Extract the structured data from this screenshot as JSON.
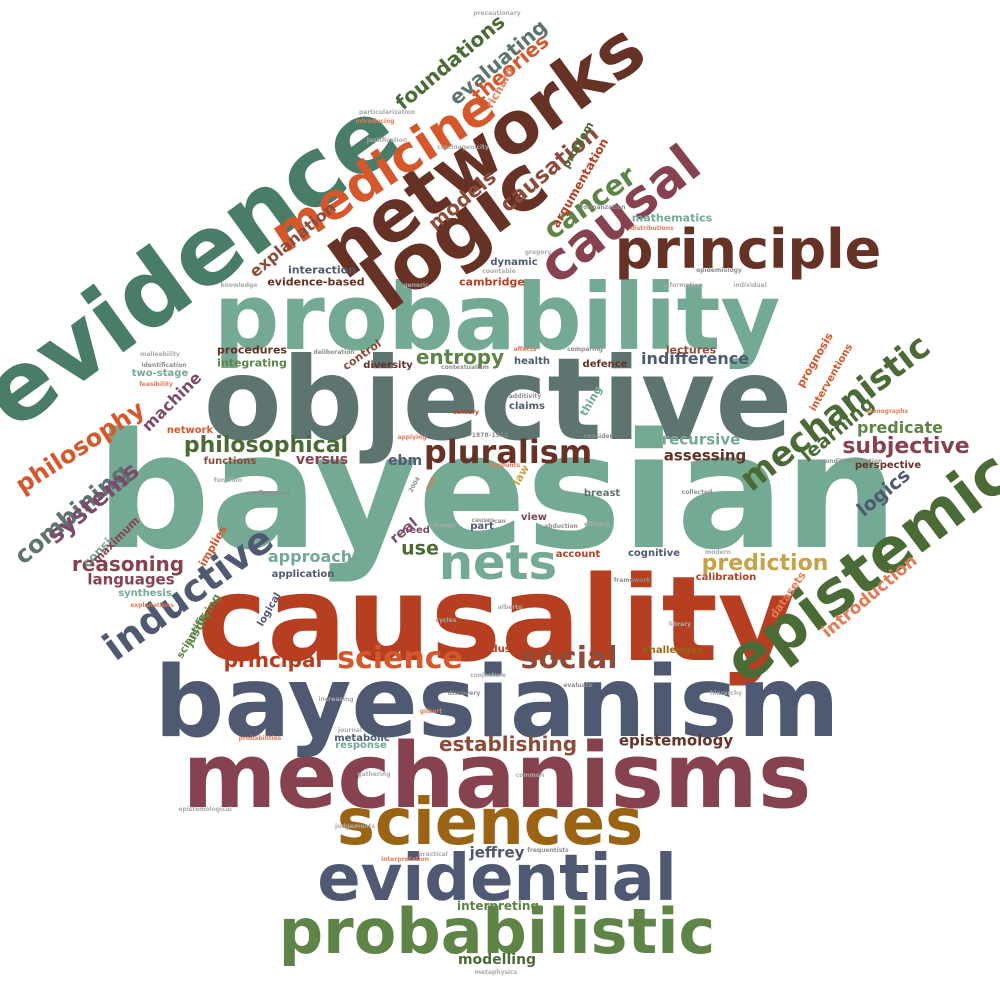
{
  "palette": {
    "teal": "#74a993",
    "slate": "#5d7470",
    "navy": "#4f5a72",
    "rust": "#b63f22",
    "plum": "#86434f",
    "gold": "#9a6414",
    "olive": "#5e8447",
    "green": "#4a7d67",
    "brown": "#653225",
    "orange": "#d5572c",
    "dkolive": "#4a6b35",
    "mauve": "#7b4b6c",
    "sand": "#c8a246",
    "sienna": "#8d4c3a",
    "coral": "#e27b56"
  },
  "words": [
    {
      "text": "bayesian",
      "color": "#74a993"
    },
    {
      "text": "objective",
      "color": "#5d7470"
    },
    {
      "text": "causality",
      "color": "#b63f22"
    },
    {
      "text": "bayesianism",
      "color": "#4f5a72"
    },
    {
      "text": "mechanisms",
      "color": "#86434f"
    },
    {
      "text": "probability",
      "color": "#74a993"
    },
    {
      "text": "evidence",
      "color": "#4a7d67"
    },
    {
      "text": "sciences",
      "color": "#9a6414"
    },
    {
      "text": "evidential",
      "color": "#4f5a72"
    },
    {
      "text": "probabilistic",
      "color": "#5e8447"
    },
    {
      "text": "networks",
      "color": "#653225"
    },
    {
      "text": "logic",
      "color": "#653225"
    },
    {
      "text": "epistemic",
      "color": "#4a6b35"
    },
    {
      "text": "principle",
      "color": "#653225"
    },
    {
      "text": "medicine",
      "color": "#d5572c"
    },
    {
      "text": "causal",
      "color": "#86434f"
    },
    {
      "text": "nets",
      "color": "#74a993"
    },
    {
      "text": "inductive",
      "color": "#4f5a72"
    },
    {
      "text": "mechanistic",
      "color": "#4a6b35"
    },
    {
      "text": "pluralism",
      "color": "#653225"
    },
    {
      "text": "science",
      "color": "#d5572c"
    },
    {
      "text": "social",
      "color": "#8d4c3a"
    },
    {
      "text": "philosophy",
      "color": "#d5572c"
    },
    {
      "text": "combining",
      "color": "#5d7470"
    },
    {
      "text": "systems",
      "color": "#7b4b6c"
    },
    {
      "text": "cancer",
      "color": "#5e8447"
    },
    {
      "text": "models",
      "color": "#8d4c3a"
    },
    {
      "text": "causation",
      "color": "#8d4c3a"
    },
    {
      "text": "evaluating",
      "color": "#5d7470"
    },
    {
      "text": "foundations",
      "color": "#4a6b35"
    },
    {
      "text": "theories",
      "color": "#d5572c"
    },
    {
      "text": "philosophical",
      "color": "#4a6b35"
    },
    {
      "text": "reasoning",
      "color": "#86434f"
    },
    {
      "text": "subjective",
      "color": "#86434f"
    },
    {
      "text": "prediction",
      "color": "#c8a246"
    },
    {
      "text": "entropy",
      "color": "#5e8447"
    },
    {
      "text": "establishing",
      "color": "#8d4c3a"
    },
    {
      "text": "principal",
      "color": "#b63f22"
    },
    {
      "text": "learning",
      "color": "#4a6b35"
    },
    {
      "text": "logics",
      "color": "#4f5a72"
    },
    {
      "text": "introduction",
      "color": "#e27b56"
    },
    {
      "text": "explanation",
      "color": "#8d4c3a"
    },
    {
      "text": "indifference",
      "color": "#4f5a72"
    },
    {
      "text": "recursive",
      "color": "#74a993"
    },
    {
      "text": "assessing",
      "color": "#653225"
    },
    {
      "text": "languages",
      "color": "#86434f"
    },
    {
      "text": "approach",
      "color": "#74a993"
    },
    {
      "text": "predicate",
      "color": "#5e8447"
    },
    {
      "text": "use",
      "color": "#4a6b35"
    },
    {
      "text": "epistemology",
      "color": "#653225"
    },
    {
      "text": "jeffrey",
      "color": "#4f5a72"
    },
    {
      "text": "interpreting",
      "color": "#5e8447"
    },
    {
      "text": "modelling",
      "color": "#4a6b35"
    },
    {
      "text": "machine",
      "color": "#7b4b6c"
    },
    {
      "text": "versus",
      "color": "#86434f"
    },
    {
      "text": "ebm",
      "color": "#4f5a72"
    },
    {
      "text": "real",
      "color": "#7b4b6c"
    },
    {
      "text": "mathematics",
      "color": "#74a993"
    },
    {
      "text": "cambridge",
      "color": "#b63f22"
    },
    {
      "text": "evidence-based",
      "color": "#653225"
    },
    {
      "text": "interaction",
      "color": "#4f5a72"
    },
    {
      "text": "procedures",
      "color": "#653225"
    },
    {
      "text": "integrating",
      "color": "#5e8447"
    },
    {
      "text": "functions",
      "color": "#8d4c3a"
    },
    {
      "text": "perspective",
      "color": "#653225"
    },
    {
      "text": "lectures",
      "color": "#8d4c3a"
    },
    {
      "text": "health",
      "color": "#4f5a72"
    },
    {
      "text": "defence",
      "color": "#653225"
    },
    {
      "text": "claims",
      "color": "#4f5a72"
    },
    {
      "text": "diversity",
      "color": "#653225"
    },
    {
      "text": "control",
      "color": "#8d4c3a"
    },
    {
      "text": "dynamic",
      "color": "#4f5a72"
    },
    {
      "text": "thing",
      "color": "#74a993"
    },
    {
      "text": "breast",
      "color": "#5d7470"
    },
    {
      "text": "account",
      "color": "#b63f22"
    },
    {
      "text": "cognitive",
      "color": "#4f5a72"
    },
    {
      "text": "calibration",
      "color": "#b63f22"
    },
    {
      "text": "datasets",
      "color": "#e27b56"
    },
    {
      "text": "challenges",
      "color": "#9a6414"
    },
    {
      "text": "response",
      "color": "#74a993"
    },
    {
      "text": "metabolic",
      "color": "#4f5a72"
    },
    {
      "text": "application",
      "color": "#4f5a72"
    },
    {
      "text": "synthesis",
      "color": "#74a993"
    },
    {
      "text": "two-stage",
      "color": "#74a993"
    },
    {
      "text": "network",
      "color": "#d5572c"
    },
    {
      "text": "implies",
      "color": "#d5572c"
    },
    {
      "text": "justifying",
      "color": "#5e8447"
    },
    {
      "text": "consistent",
      "color": "#74a993"
    },
    {
      "text": "maximum",
      "color": "#86434f"
    },
    {
      "text": "modus",
      "color": "#b63f22"
    },
    {
      "text": "part",
      "color": "#4f5a72"
    },
    {
      "text": "need",
      "color": "#7b4b6c"
    },
    {
      "text": "view",
      "color": "#86434f"
    },
    {
      "text": "richard",
      "color": "#e27b56"
    },
    {
      "text": "problem",
      "color": "#4a6b35"
    },
    {
      "text": "argumentation",
      "color": "#b63f22"
    },
    {
      "text": "prognosis",
      "color": "#d5572c"
    },
    {
      "text": "interventions",
      "color": "#d5572c"
    },
    {
      "text": "scientific",
      "color": "#5e8447"
    },
    {
      "text": "logical",
      "color": "#4f5a72"
    },
    {
      "text": "law",
      "color": "#c8a246"
    },
    {
      "text": "discovery",
      "color": "#8d8d8d"
    },
    {
      "text": "frequentists",
      "color": "#8d8d8d"
    },
    {
      "text": "metaphysics",
      "color": "#aaaaaa"
    },
    {
      "text": "evaluate",
      "color": "#8d8d8d"
    },
    {
      "text": "hierarchy",
      "color": "#aaaaaa"
    },
    {
      "text": "framework",
      "color": "#8d8d8d"
    },
    {
      "text": "conjecture",
      "color": "#aaaaaa"
    },
    {
      "text": "alberto",
      "color": "#aaaaaa"
    },
    {
      "text": "cycles",
      "color": "#aaaaaa"
    },
    {
      "text": "abduction",
      "color": "#8d8d8d"
    },
    {
      "text": "confirmation",
      "color": "#8d8d8d"
    },
    {
      "text": "function",
      "color": "#aaaaaa"
    },
    {
      "text": "explanations",
      "color": "#e27b56"
    },
    {
      "text": "contextualism",
      "color": "#8d8d8d"
    },
    {
      "text": "comparing",
      "color": "#8d8d8d"
    },
    {
      "text": "affects",
      "color": "#e27b56"
    },
    {
      "text": "generic",
      "color": "#aaaaaa"
    },
    {
      "text": "countable",
      "color": "#aaaaaa"
    },
    {
      "text": "information",
      "color": "#aaaaaa"
    },
    {
      "text": "individual",
      "color": "#aaaaaa"
    },
    {
      "text": "knowledge",
      "color": "#aaaaaa"
    },
    {
      "text": "deliberation",
      "color": "#8d8d8d"
    },
    {
      "text": "gregory",
      "color": "#aaaaaa"
    },
    {
      "text": "efficacy",
      "color": "#aaaaaa"
    },
    {
      "text": "formalization",
      "color": "#8d8d8d"
    },
    {
      "text": "distributions",
      "color": "#e27b56"
    },
    {
      "text": "epidemiology",
      "color": "#8d8d8d"
    },
    {
      "text": "century",
      "color": "#b63f22"
    },
    {
      "text": "additivity",
      "color": "#8d8d8d"
    },
    {
      "text": "accounts",
      "color": "#e27b56"
    },
    {
      "text": "applying",
      "color": "#e27b56"
    },
    {
      "text": "collected",
      "color": "#8d8d8d"
    },
    {
      "text": "conditionalization",
      "color": "#8d8d8d"
    },
    {
      "text": "modern",
      "color": "#aaaaaa"
    },
    {
      "text": "increasing",
      "color": "#aaaaaa"
    },
    {
      "text": "journal",
      "color": "#aaaaaa"
    },
    {
      "text": "gathering",
      "color": "#aaaaaa"
    },
    {
      "text": "gilbert",
      "color": "#e27b56"
    },
    {
      "text": "judgements",
      "color": "#aaaaaa"
    },
    {
      "text": "epistemological",
      "color": "#aaaaaa"
    },
    {
      "text": "probabilities",
      "color": "#e27b56"
    },
    {
      "text": "interpretation",
      "color": "#e27b56"
    },
    {
      "text": "practical",
      "color": "#aaaaaa"
    },
    {
      "text": "common",
      "color": "#aaaaaa"
    },
    {
      "text": "feasibility",
      "color": "#e27b56"
    },
    {
      "text": "identification",
      "color": "#8d8d8d"
    },
    {
      "text": "malleability",
      "color": "#aaaaaa"
    },
    {
      "text": "consider",
      "color": "#8d8d8d"
    },
    {
      "text": "change",
      "color": "#aaaaaa"
    },
    {
      "text": "2004",
      "color": "#8d8d8d"
    },
    {
      "text": "21st",
      "color": "#e27b56"
    },
    {
      "text": "1878–1912",
      "color": "#8d8d8d"
    },
    {
      "text": "can",
      "color": "#8d8d8d"
    },
    {
      "text": "causes",
      "color": "#8d8d8d"
    },
    {
      "text": "introducing",
      "color": "#e27b56"
    },
    {
      "text": "justification",
      "color": "#aaaaaa"
    },
    {
      "text": "particularization",
      "color": "#aaaaaa"
    },
    {
      "text": "precautionary",
      "color": "#aaaaaa"
    },
    {
      "text": "carcinogenicity",
      "color": "#aaaaaa"
    },
    {
      "text": "monographs",
      "color": "#e27b56"
    },
    {
      "text": "library",
      "color": "#aaaaaa"
    }
  ]
}
